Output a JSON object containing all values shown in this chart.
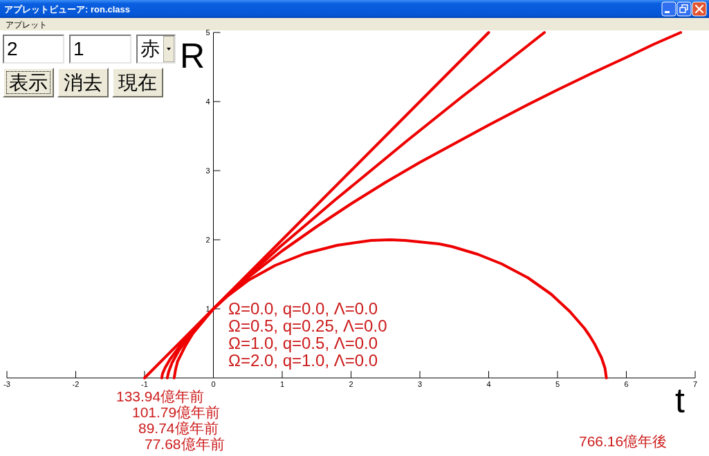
{
  "chart_data": {
    "type": "line",
    "title": "アプレットビューア: ron.class",
    "xlabel": "t",
    "ylabel": "R",
    "xlim": [
      -3,
      7
    ],
    "ylim": [
      0,
      5
    ],
    "xticks": [
      -3,
      -2,
      -1,
      0,
      1,
      2,
      3,
      4,
      5,
      6,
      7
    ],
    "yticks": [
      1,
      2,
      3,
      4,
      5
    ],
    "line_style": "solid",
    "series": [
      {
        "color": "#ee0000",
        "x": [
          -1,
          0,
          1,
          2,
          3,
          4
        ],
        "values": [
          0,
          1,
          2,
          3,
          4,
          5
        ]
      },
      {
        "color": "#ee0000",
        "x": [
          -0.75,
          -0.74,
          -0.7,
          -0.63,
          -0.4,
          0,
          0.4,
          0.97,
          1.42,
          1.76,
          2.14,
          2.81,
          3.6,
          4.21,
          4.81
        ],
        "values": [
          0,
          0.06,
          0.15,
          0.27,
          0.58,
          1,
          1.38,
          1.9,
          2.28,
          2.57,
          2.88,
          3.43,
          4.06,
          4.53,
          5
        ]
      },
      {
        "color": "#ee0000",
        "x": [
          -0.67,
          -0.65,
          -0.6,
          -0.5,
          -0.4,
          -0.2,
          0,
          0.25,
          0.5,
          1,
          1.5,
          2,
          2.5,
          3,
          3.5,
          4,
          4.5,
          5,
          5.5,
          6,
          6.4,
          6.79
        ],
        "values": [
          0,
          0.09,
          0.22,
          0.4,
          0.54,
          0.79,
          1,
          1.24,
          1.45,
          1.84,
          2.19,
          2.52,
          2.83,
          3.12,
          3.39,
          3.66,
          3.92,
          4.17,
          4.41,
          4.64,
          4.83,
          5
        ]
      },
      {
        "color": "#ee0000",
        "x": [
          -0.57,
          -0.55,
          -0.52,
          -0.41,
          -0.3,
          0,
          0.2,
          0.52,
          0.9,
          1.33,
          1.8,
          2.29,
          2.57,
          2.79,
          3.28,
          3.47,
          3.84,
          4.19,
          4.57,
          4.91,
          5.18,
          5.39,
          5.46,
          5.54,
          5.64,
          5.69,
          5.71
        ],
        "values": [
          0,
          0.12,
          0.24,
          0.46,
          0.64,
          1,
          1.18,
          1.42,
          1.63,
          1.8,
          1.92,
          1.99,
          2,
          1.99,
          1.94,
          1.9,
          1.79,
          1.65,
          1.45,
          1.21,
          0.96,
          0.72,
          0.62,
          0.49,
          0.29,
          0.14,
          0
        ]
      }
    ],
    "annotations": [
      "アプレット",
      "2",
      "1",
      "赤",
      "表示",
      "消去",
      "現在",
      "Ω=0.0, q=0.0, Λ=0.0",
      "Ω=0.5, q=0.25, Λ=0.0",
      "Ω=1.0, q=0.5, Λ=0.0",
      "Ω=2.0, q=1.0, Λ=0.0",
      "133.94億年前",
      "101.79億年前",
      "89.74億年前",
      "77.68億年前",
      "766.16億年後"
    ]
  }
}
